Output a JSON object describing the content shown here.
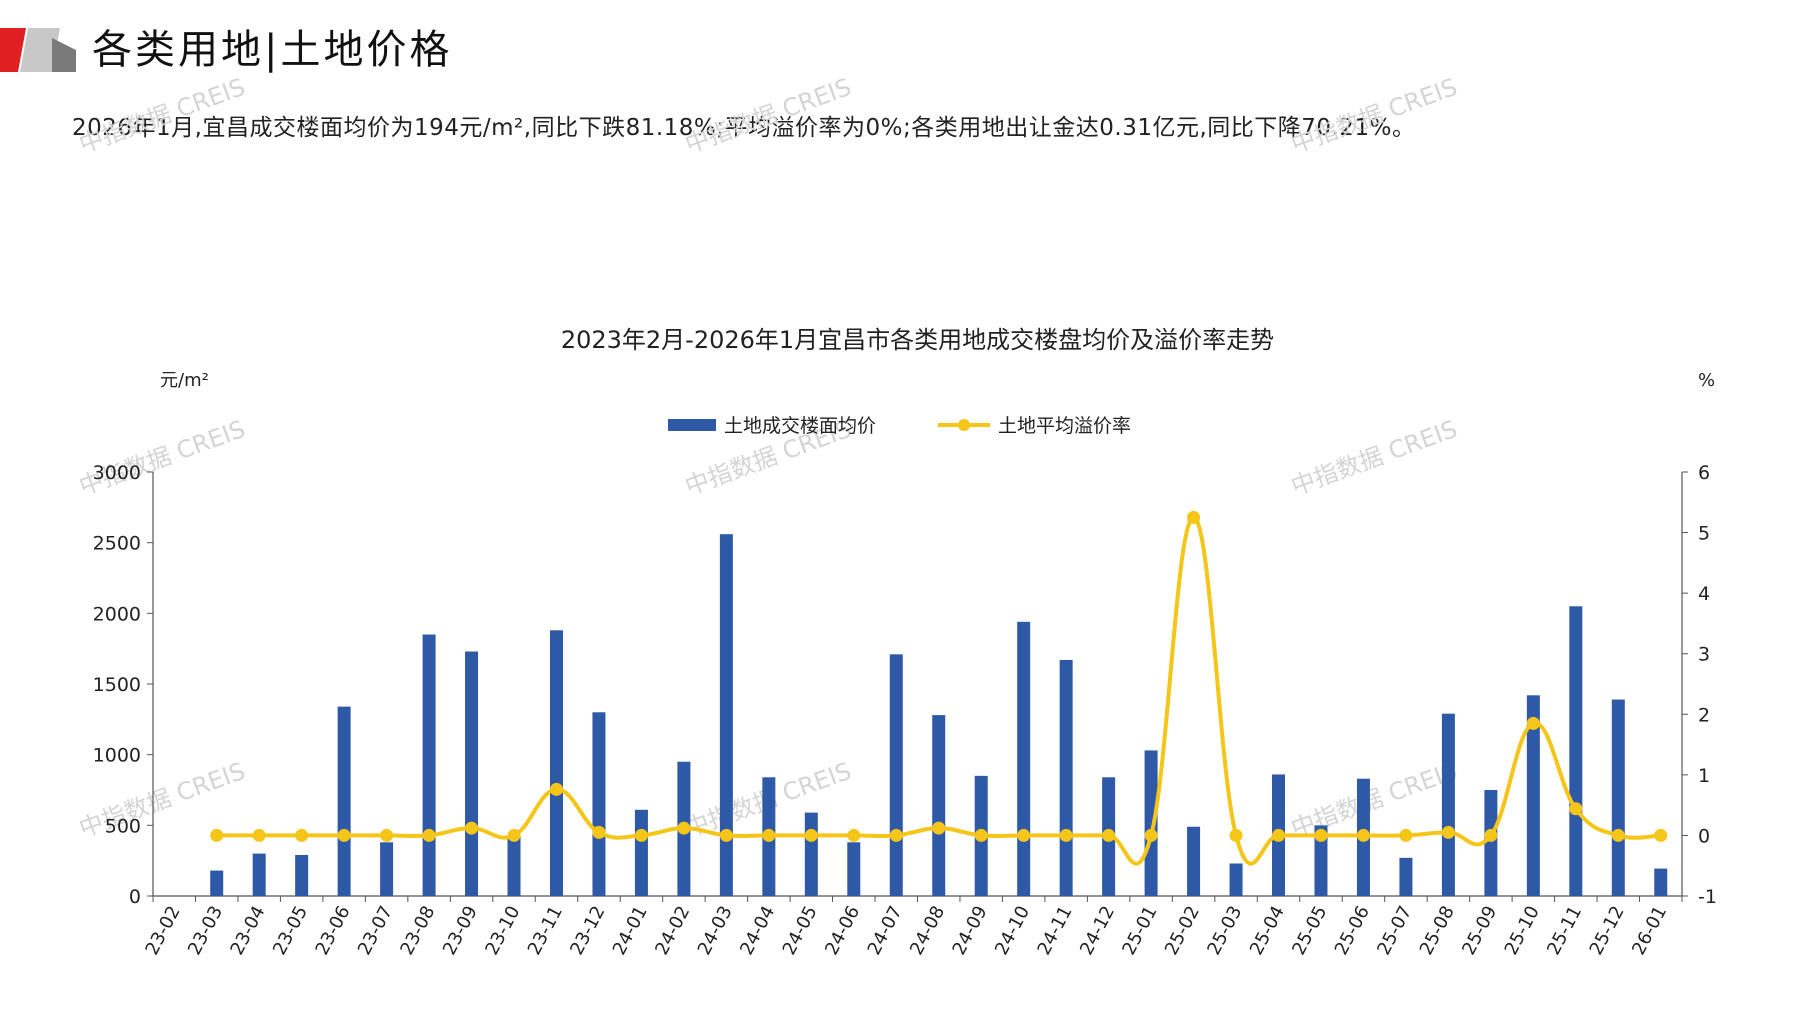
{
  "header": {
    "title": "各类用地|土地价格",
    "summary": "2026年1月,宜昌成交楼面均价为194元/m²,同比下跌81.18%;平均溢价率为0%;各类用地出让金达0.31亿元,同比下降70.21%。"
  },
  "watermark_text": "中指数据 CREIS",
  "colors": {
    "bar": "#2E59A7",
    "line": "#F5C518",
    "logo_red": "#E02020",
    "logo_gray": "#9A9A9A",
    "axis": "#555555"
  },
  "chart_data": {
    "type": "bar+line",
    "title": "2023年2月-2026年1月宜昌市各类用地成交楼盘均价及溢价率走势",
    "y_left_unit": "元/m²",
    "y_right_unit": "%",
    "ylim_left": [
      0,
      3000
    ],
    "ylim_right": [
      -1,
      6
    ],
    "yticks_left": [
      "0",
      "500",
      "1000",
      "1500",
      "2000",
      "2500",
      "3000"
    ],
    "yticks_right": [
      "-1",
      "0",
      "1",
      "2",
      "3",
      "4",
      "5",
      "6"
    ],
    "legend_position": "top-center",
    "categories": [
      "23-02",
      "23-03",
      "23-04",
      "23-05",
      "23-06",
      "23-07",
      "23-08",
      "23-09",
      "23-10",
      "23-11",
      "23-12",
      "24-01",
      "24-02",
      "24-03",
      "24-04",
      "24-05",
      "24-06",
      "24-07",
      "24-08",
      "24-09",
      "24-10",
      "24-11",
      "24-12",
      "25-01",
      "25-02",
      "25-03",
      "25-04",
      "25-05",
      "25-06",
      "25-07",
      "25-08",
      "25-09",
      "25-10",
      "25-11",
      "25-12",
      "26-01"
    ],
    "series": [
      {
        "name": "土地成交楼面均价",
        "type": "bar",
        "axis": "left",
        "values": [
          0,
          180,
          300,
          290,
          1340,
          380,
          1850,
          1730,
          430,
          1880,
          1300,
          610,
          950,
          2560,
          840,
          590,
          380,
          1710,
          1280,
          850,
          1940,
          1670,
          840,
          1030,
          490,
          230,
          860,
          500,
          830,
          270,
          1290,
          750,
          1420,
          2050,
          1390,
          194
        ]
      },
      {
        "name": "土地平均溢价率",
        "type": "line",
        "axis": "right",
        "values": [
          null,
          0,
          0,
          0,
          0,
          0,
          0,
          0.12,
          0,
          0.76,
          0.05,
          0,
          0.12,
          0,
          0,
          0,
          0,
          0,
          0.12,
          0,
          0,
          0,
          0,
          0,
          5.25,
          0,
          0,
          0,
          0,
          0,
          0.05,
          0,
          1.85,
          0.44,
          0,
          0
        ]
      }
    ]
  }
}
